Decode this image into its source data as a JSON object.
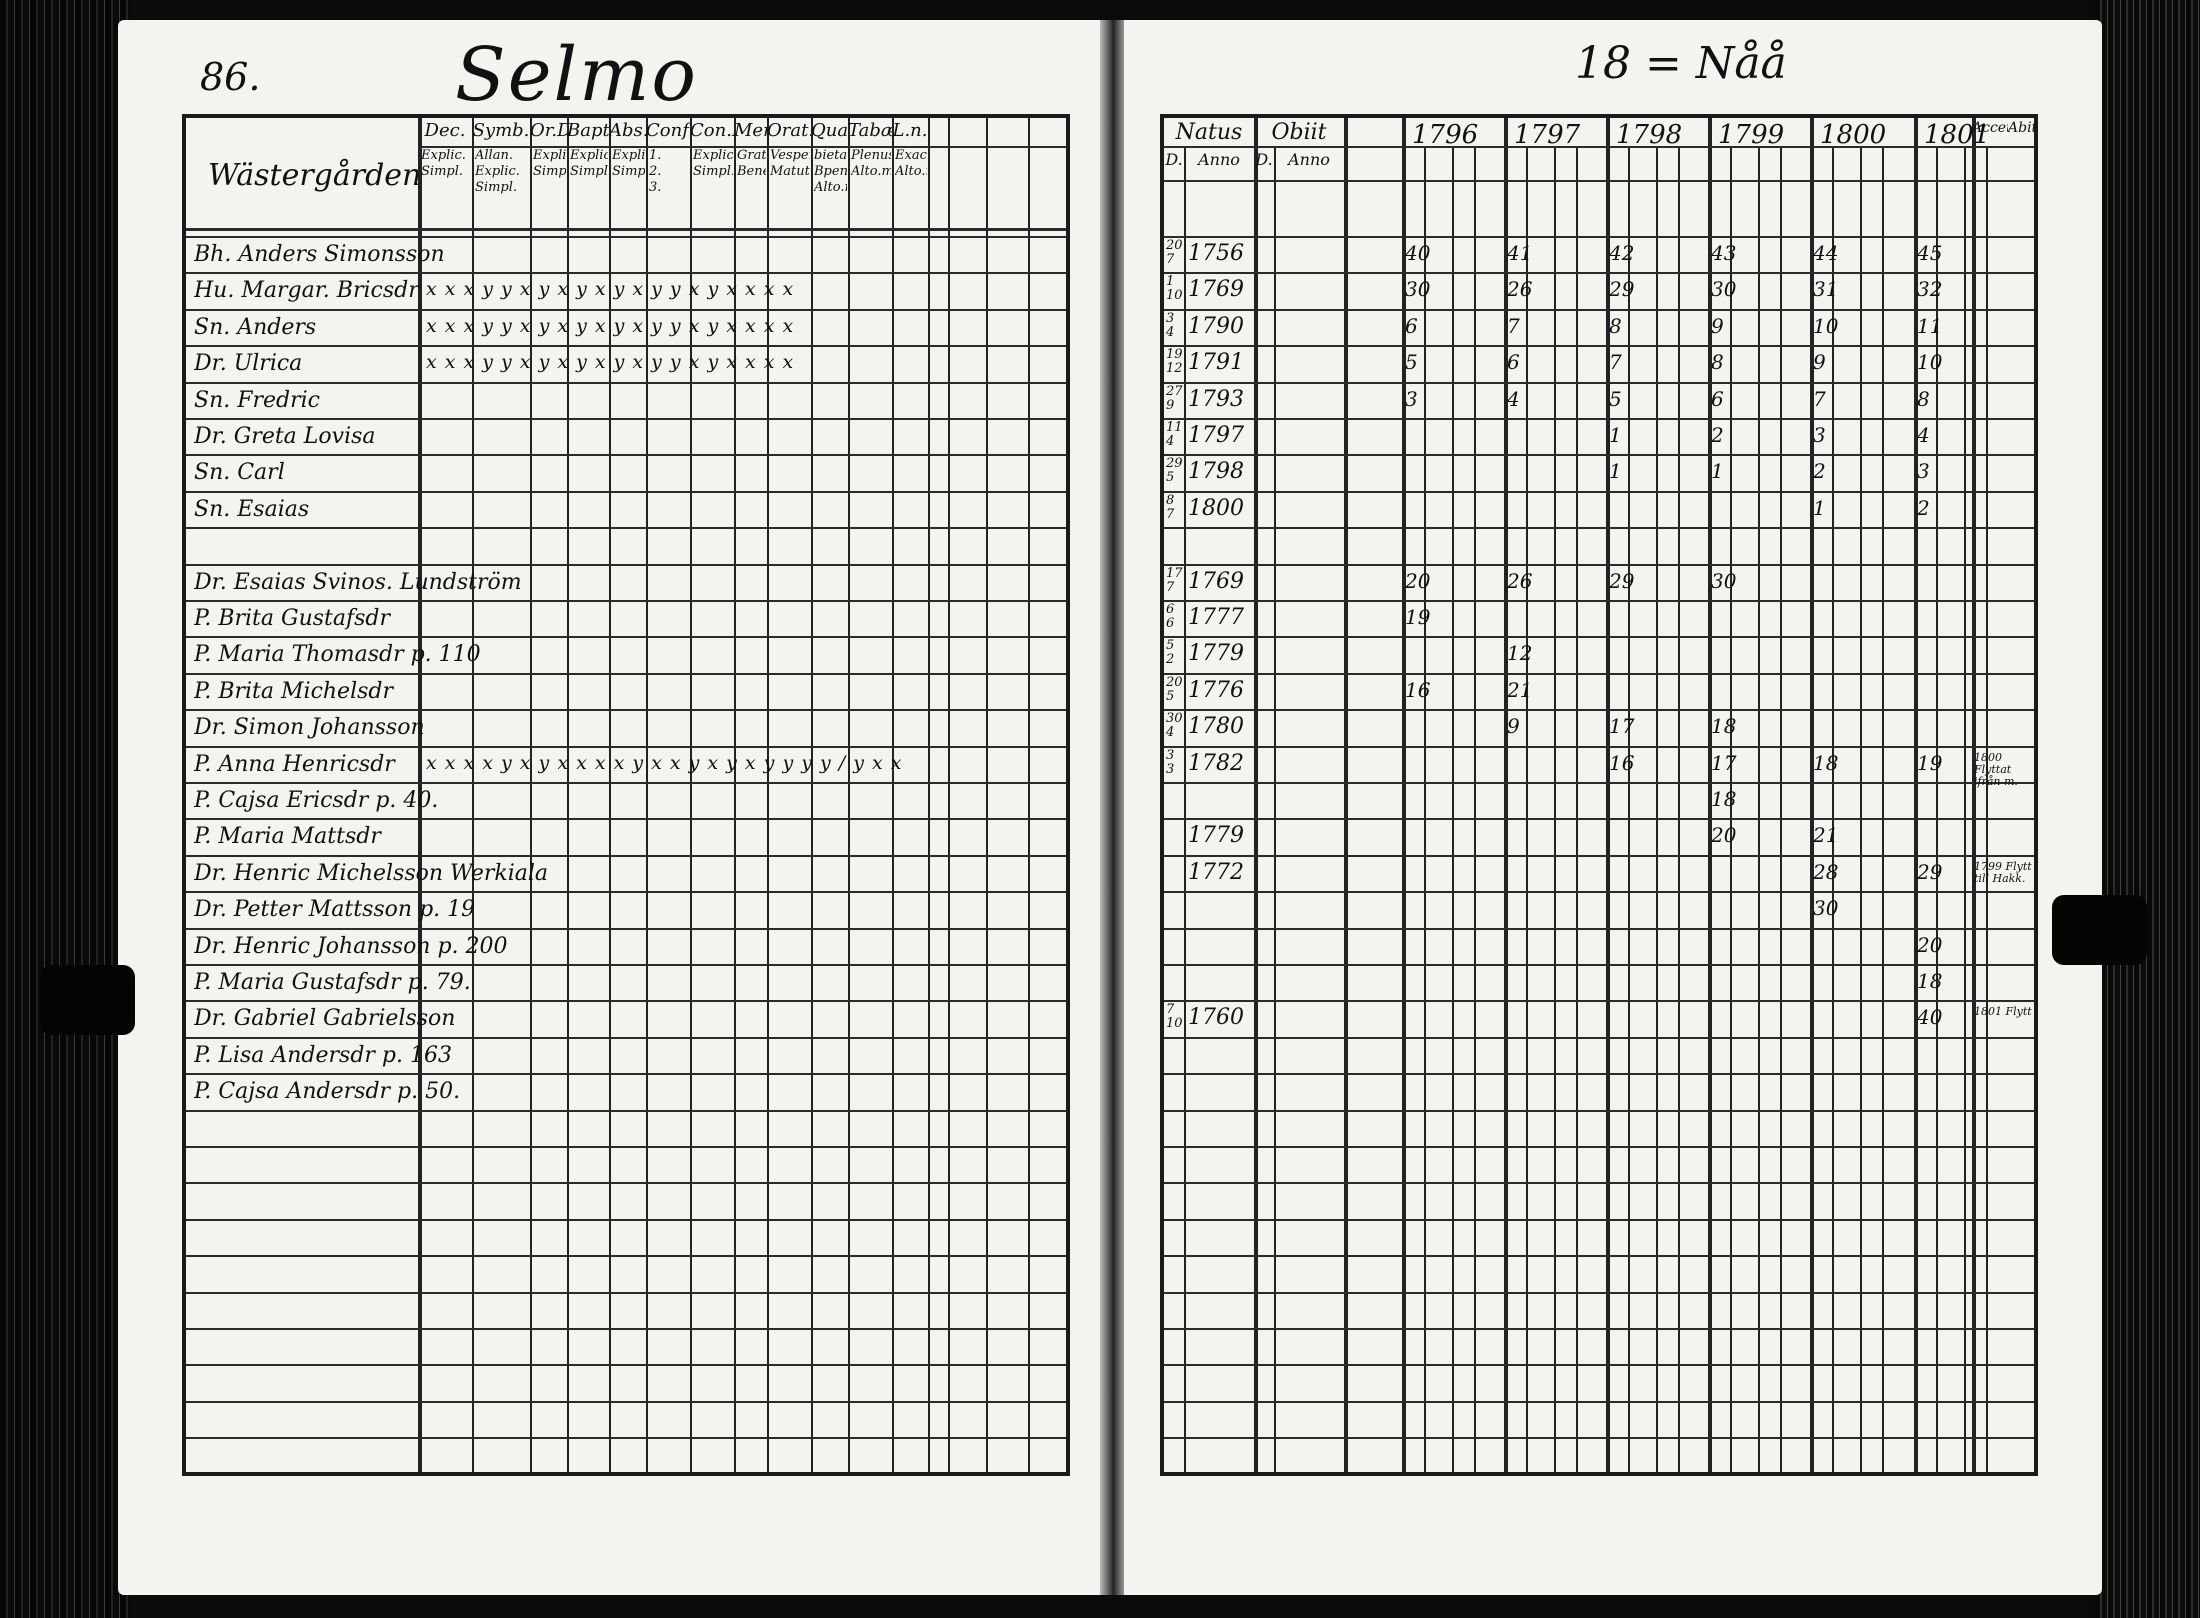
{
  "page_number": "86.",
  "parish_title": "Selmo",
  "farm_code": "18 = Nåå",
  "farm_name": "Wästergården",
  "left_headers": [
    {
      "top": "Dec.",
      "sub": [
        "Explic.",
        "Simpl."
      ]
    },
    {
      "top": "Symb.",
      "sub": [
        "Allan.",
        "Explic.",
        "Simpl."
      ]
    },
    {
      "top": "Or.D.",
      "sub": [
        "Explic.",
        "Simpl."
      ]
    },
    {
      "top": "Bapt.",
      "sub": [
        "Explic.",
        "Simpl."
      ]
    },
    {
      "top": "Abs.",
      "sub": [
        "Explic.",
        "Simpl."
      ]
    },
    {
      "top": "Conf.",
      "sub": [
        "1.",
        "2.",
        "3."
      ]
    },
    {
      "top": "Con.D.",
      "sub": [
        "Explic.",
        "Simpl."
      ]
    },
    {
      "top": "Mens.",
      "sub": [
        "Grat.a.",
        "Bened."
      ]
    },
    {
      "top": "Orat.",
      "sub": [
        "Vesper.",
        "Matut."
      ]
    },
    {
      "top": "Quaest.",
      "sub": [
        "bietass",
        "Bpenus",
        "Alto.m"
      ]
    },
    {
      "top": "Tabæ",
      "sub": [
        "Plenus",
        "Alto.m"
      ]
    },
    {
      "top": "L.n.",
      "sub": [
        "Exach",
        "Alto.m"
      ]
    }
  ],
  "right_headers": {
    "natus": "Natus",
    "obiit": "Obiit",
    "d": "D.",
    "anno": "Anno",
    "years": [
      "1796",
      "1797",
      "1798",
      "1799",
      "1800",
      "1801"
    ],
    "accessit": "Accet.",
    "abiit": "Abit."
  },
  "persons": [
    {
      "name": "Bh. Anders Simonsson",
      "marks": "",
      "day": "20 7",
      "anno": "1756",
      "ages": [
        "40",
        "41",
        "42",
        "43",
        "44",
        "45"
      ]
    },
    {
      "name": "Hu. Margar. Bricsdr",
      "marks": "x x  x y y  x y  x y  x y  x y y  x y  x x  x x",
      "day": "1 10",
      "anno": "1769",
      "ages": [
        "30",
        "26",
        "29",
        "30",
        "31",
        "32"
      ]
    },
    {
      "name": "Sn. Anders",
      "marks": "x x  x y y  x y  x y  x y  x y y  x y  x x  x x",
      "day": "3 4",
      "anno": "1790",
      "ages": [
        "6",
        "7",
        "8",
        "9",
        "10",
        "11"
      ]
    },
    {
      "name": "Dr. Ulrica",
      "marks": "x x  x y y  x y  x y  x y  x y y  x y  x x  x x",
      "day": "19 12",
      "anno": "1791",
      "ages": [
        "5",
        "6",
        "7",
        "8",
        "9",
        "10"
      ]
    },
    {
      "name": "Sn. Fredric",
      "marks": "",
      "day": "27 9",
      "anno": "1793",
      "ages": [
        "3",
        "4",
        "5",
        "6",
        "7",
        "8"
      ]
    },
    {
      "name": "Dr. Greta Lovisa",
      "marks": "",
      "day": "11 4",
      "anno": "1797",
      "ages": [
        "",
        "",
        "1",
        "2",
        "3",
        "4"
      ]
    },
    {
      "name": "Sn. Carl",
      "marks": "",
      "day": "29 5",
      "anno": "1798",
      "ages": [
        "",
        "",
        "1",
        "1",
        "2",
        "3"
      ]
    },
    {
      "name": "Sn. Esaias",
      "marks": "",
      "day": "8 7",
      "anno": "1800",
      "ages": [
        "",
        "",
        "",
        "",
        "1",
        "2"
      ]
    },
    {
      "name": "",
      "marks": "",
      "day": "",
      "anno": "",
      "ages": [
        "",
        "",
        "",
        "",
        "",
        ""
      ]
    },
    {
      "name": "Dr. Esaias Svinos. Lundström",
      "marks": "",
      "day": "17 7",
      "anno": "1769",
      "ages": [
        "20",
        "26",
        "29",
        "30",
        "",
        ""
      ]
    },
    {
      "name": "P. Brita Gustafsdr",
      "marks": "",
      "day": "6 6",
      "anno": "1777",
      "ages": [
        "19",
        "",
        "",
        "",
        "",
        ""
      ]
    },
    {
      "name": "P. Maria Thomasdr p. 110",
      "marks": "",
      "day": "5 2",
      "anno": "1779",
      "ages": [
        "",
        "12",
        "",
        "",
        "",
        ""
      ]
    },
    {
      "name": "P. Brita Michelsdr",
      "marks": "",
      "day": "20 5",
      "anno": "1776",
      "ages": [
        "16",
        "21",
        "",
        "",
        "",
        ""
      ]
    },
    {
      "name": "Dr. Simon Johansson",
      "marks": "",
      "day": "30 4",
      "anno": "1780",
      "ages": [
        "",
        "9",
        "17",
        "18",
        "",
        ""
      ]
    },
    {
      "name": "P. Anna Henricsdr",
      "marks": "x x  x x y  x y  x x  x x y  x x y  x y  x y  y y  y /  y x  x",
      "day": "3 3",
      "anno": "1782",
      "ages": [
        "",
        "",
        "16",
        "17",
        "18",
        "19"
      ]
    },
    {
      "name": "P. Cajsa Ericsdr p. 40.",
      "marks": "",
      "day": "",
      "anno": "",
      "ages": [
        "",
        "",
        "",
        "18",
        "",
        ""
      ]
    },
    {
      "name": "P. Maria Mattsdr",
      "marks": "",
      "day": "",
      "anno": "1779",
      "ages": [
        "",
        "",
        "",
        "20",
        "21",
        ""
      ]
    },
    {
      "name": "Dr. Henric Michelsson Werkiala",
      "marks": "",
      "day": "",
      "anno": "1772",
      "ages": [
        "",
        "",
        "",
        "",
        "28",
        "29"
      ]
    },
    {
      "name": "Dr. Petter Mattsson p. 19",
      "marks": "",
      "day": "",
      "anno": "",
      "ages": [
        "",
        "",
        "",
        "",
        "30",
        ""
      ]
    },
    {
      "name": "Dr. Henric Johansson p. 200",
      "marks": "",
      "day": "",
      "anno": "",
      "ages": [
        "",
        "",
        "",
        "",
        "",
        "20"
      ]
    },
    {
      "name": "P. Maria Gustafsdr p. 79.",
      "marks": "",
      "day": "",
      "anno": "",
      "ages": [
        "",
        "",
        "",
        "",
        "",
        "18"
      ]
    },
    {
      "name": "Dr. Gabriel Gabrielsson",
      "marks": "",
      "day": "7 10",
      "anno": "1760",
      "ages": [
        "",
        "",
        "",
        "",
        "",
        "40"
      ]
    },
    {
      "name": "P. Lisa Andersdr p. 163",
      "marks": "",
      "day": "",
      "anno": "",
      "ages": [
        "",
        "",
        "",
        "",
        "",
        ""
      ]
    },
    {
      "name": "P. Cajsa Andersdr p. 50.",
      "marks": "",
      "day": "",
      "anno": "",
      "ages": [
        "",
        "",
        "",
        "",
        "",
        ""
      ]
    }
  ],
  "margin_notes": [
    {
      "text": "1800 Flyttat ifrån m.",
      "row": 14
    },
    {
      "text": "1799 Flytt till Hakk.",
      "row": 17
    },
    {
      "text": "1801 Flytt",
      "row": 21
    }
  ]
}
